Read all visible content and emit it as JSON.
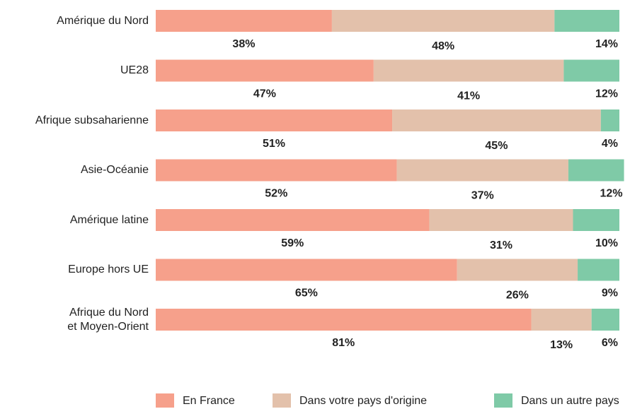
{
  "chart_data": {
    "type": "bar",
    "orientation": "horizontal",
    "stacked": true,
    "categories": [
      "Amérique du Nord",
      "UE28",
      "Afrique subsaharienne",
      "Asie-Océanie",
      "Amérique latine",
      "Europe hors UE",
      "Afrique du Nord\net Moyen-Orient"
    ],
    "series": [
      {
        "name": "En France",
        "color": "#f6a08b",
        "values": [
          38,
          47,
          51,
          52,
          59,
          65,
          81
        ],
        "value_labels": [
          "38%",
          "47%",
          "51%",
          "52%",
          "59%",
          "65%",
          "81%"
        ]
      },
      {
        "name": "Dans votre pays d'origine",
        "color": "#e3c1ab",
        "values": [
          48,
          41,
          45,
          37,
          31,
          26,
          13
        ],
        "value_labels": [
          "48%",
          "41%",
          "45%",
          "37%",
          "31%",
          "26%",
          "13%"
        ]
      },
      {
        "name": "Dans un autre pays",
        "color": "#7fcaa7",
        "values": [
          14,
          12,
          4,
          12,
          10,
          9,
          6
        ],
        "value_labels": [
          "14%",
          "12%",
          "4%",
          "12%",
          "10%",
          "9%",
          "6%"
        ]
      }
    ],
    "legend": "bottom"
  }
}
